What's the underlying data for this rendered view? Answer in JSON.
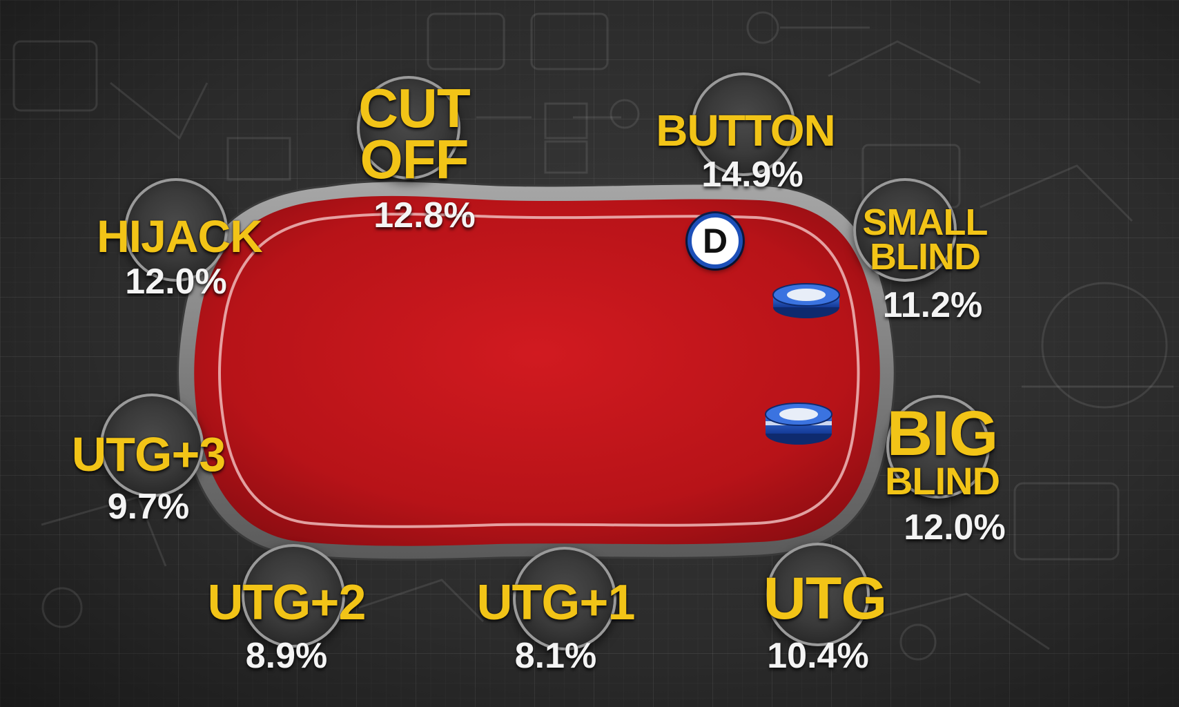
{
  "dealer_button": {
    "letter": "D"
  },
  "positions": [
    {
      "id": "cutoff",
      "label_lines": [
        "CUT",
        "OFF"
      ],
      "pct": "12.8%"
    },
    {
      "id": "button",
      "label_lines": [
        "BUTTON"
      ],
      "pct": "14.9%"
    },
    {
      "id": "hijack",
      "label_lines": [
        "HIJACK"
      ],
      "pct": "12.0%"
    },
    {
      "id": "small-blind",
      "label_lines": [
        "SMALL",
        "BLIND"
      ],
      "pct": "11.2%"
    },
    {
      "id": "utg3",
      "label_lines": [
        "UTG+3"
      ],
      "pct": "9.7%"
    },
    {
      "id": "big-blind",
      "label_lines": [
        "BIG",
        "BLIND"
      ],
      "pct": "12.0%"
    },
    {
      "id": "utg2",
      "label_lines": [
        "UTG+2"
      ],
      "pct": "8.9%"
    },
    {
      "id": "utg1",
      "label_lines": [
        "UTG+1"
      ],
      "pct": "8.1%"
    },
    {
      "id": "utg",
      "label_lines": [
        "UTG"
      ],
      "pct": "10.4%"
    }
  ],
  "colors": {
    "label": "#f2c417",
    "percentage": "#f4f4f4",
    "felt": "#c0151a",
    "rail": "#8c8c8c",
    "chip": "#1c4fb8"
  }
}
